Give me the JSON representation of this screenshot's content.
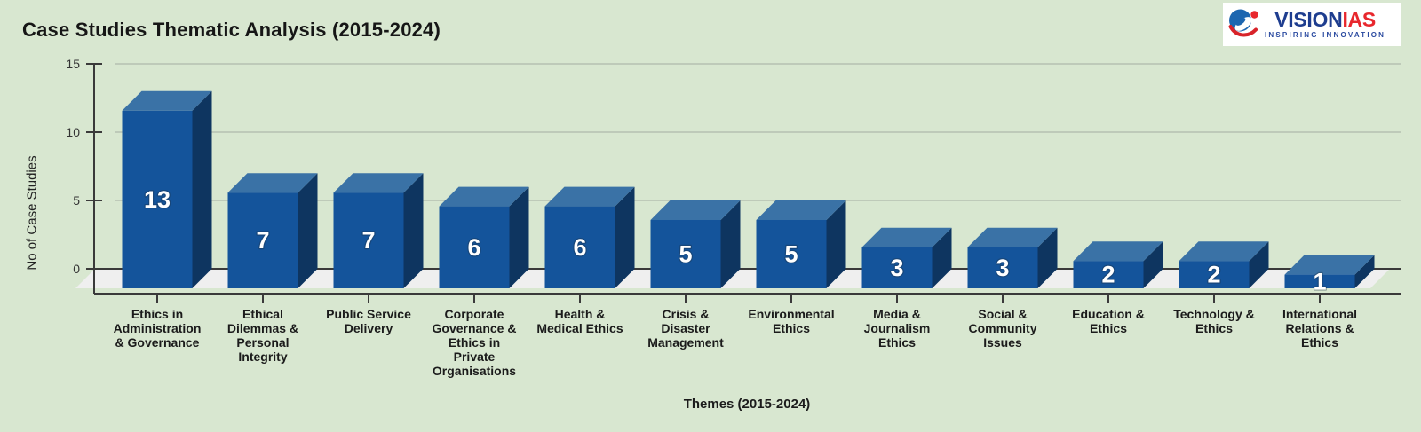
{
  "title": "Case Studies Thematic Analysis (2015-2024)",
  "logo": {
    "brand_primary": "VISION",
    "brand_secondary": "IAS",
    "tagline": "INSPIRING INNOVATION",
    "icon": "visionias-globe-swoosh-icon"
  },
  "chart_data": {
    "type": "bar",
    "style": "3d-column",
    "title": "Case Studies Thematic Analysis (2015-2024)",
    "xlabel": "Themes (2015-2024)",
    "ylabel": "No of Case Studies",
    "ylim": [
      0,
      15
    ],
    "y_ticks": [
      0,
      5,
      10,
      15
    ],
    "grid": true,
    "legend": "none",
    "categories": [
      "Ethics in Administration & Governance",
      "Ethical Dilemmas & Personal Integrity",
      "Public Service Delivery",
      "Corporate Governance & Ethics in Private Organisations",
      "Health & Medical Ethics",
      "Crisis & Disaster Management",
      "Environmental Ethics",
      "Media & Journalism Ethics",
      "Social & Community Issues",
      "Education & Ethics",
      "Technology & Ethics",
      "International Relations & Ethics"
    ],
    "categories_display": [
      "Ethics in\nAdministration\n& Governance",
      "Ethical\nDilemmas &\nPersonal\nIntegrity",
      "Public Service\nDelivery",
      "Corporate\nGovernance &\nEthics in\nPrivate\nOrganisations",
      "Health &\nMedical Ethics",
      "Crisis &\nDisaster\nManagement",
      "Environmental\nEthics",
      "Media &\nJournalism\nEthics",
      "Social &\nCommunity\nIssues",
      "Education &\nEthics",
      "Technology &\nEthics",
      "International\nRelations &\nEthics"
    ],
    "values": [
      13,
      7,
      7,
      6,
      6,
      5,
      5,
      3,
      3,
      2,
      2,
      1
    ]
  },
  "colors": {
    "background": "#d8e7d0",
    "bar_front": "#14549b",
    "bar_top": "#3a72a6",
    "bar_side": "#0e3560",
    "floor": "#efefef",
    "gridline": "#aeb9ab",
    "axis": "#3a3a3a",
    "tick_label": "#333333",
    "value_label": "#ffffff",
    "label_text": "#1b1b1b",
    "logo_blue": "#1e3d8f",
    "logo_red": "#e8272d"
  }
}
